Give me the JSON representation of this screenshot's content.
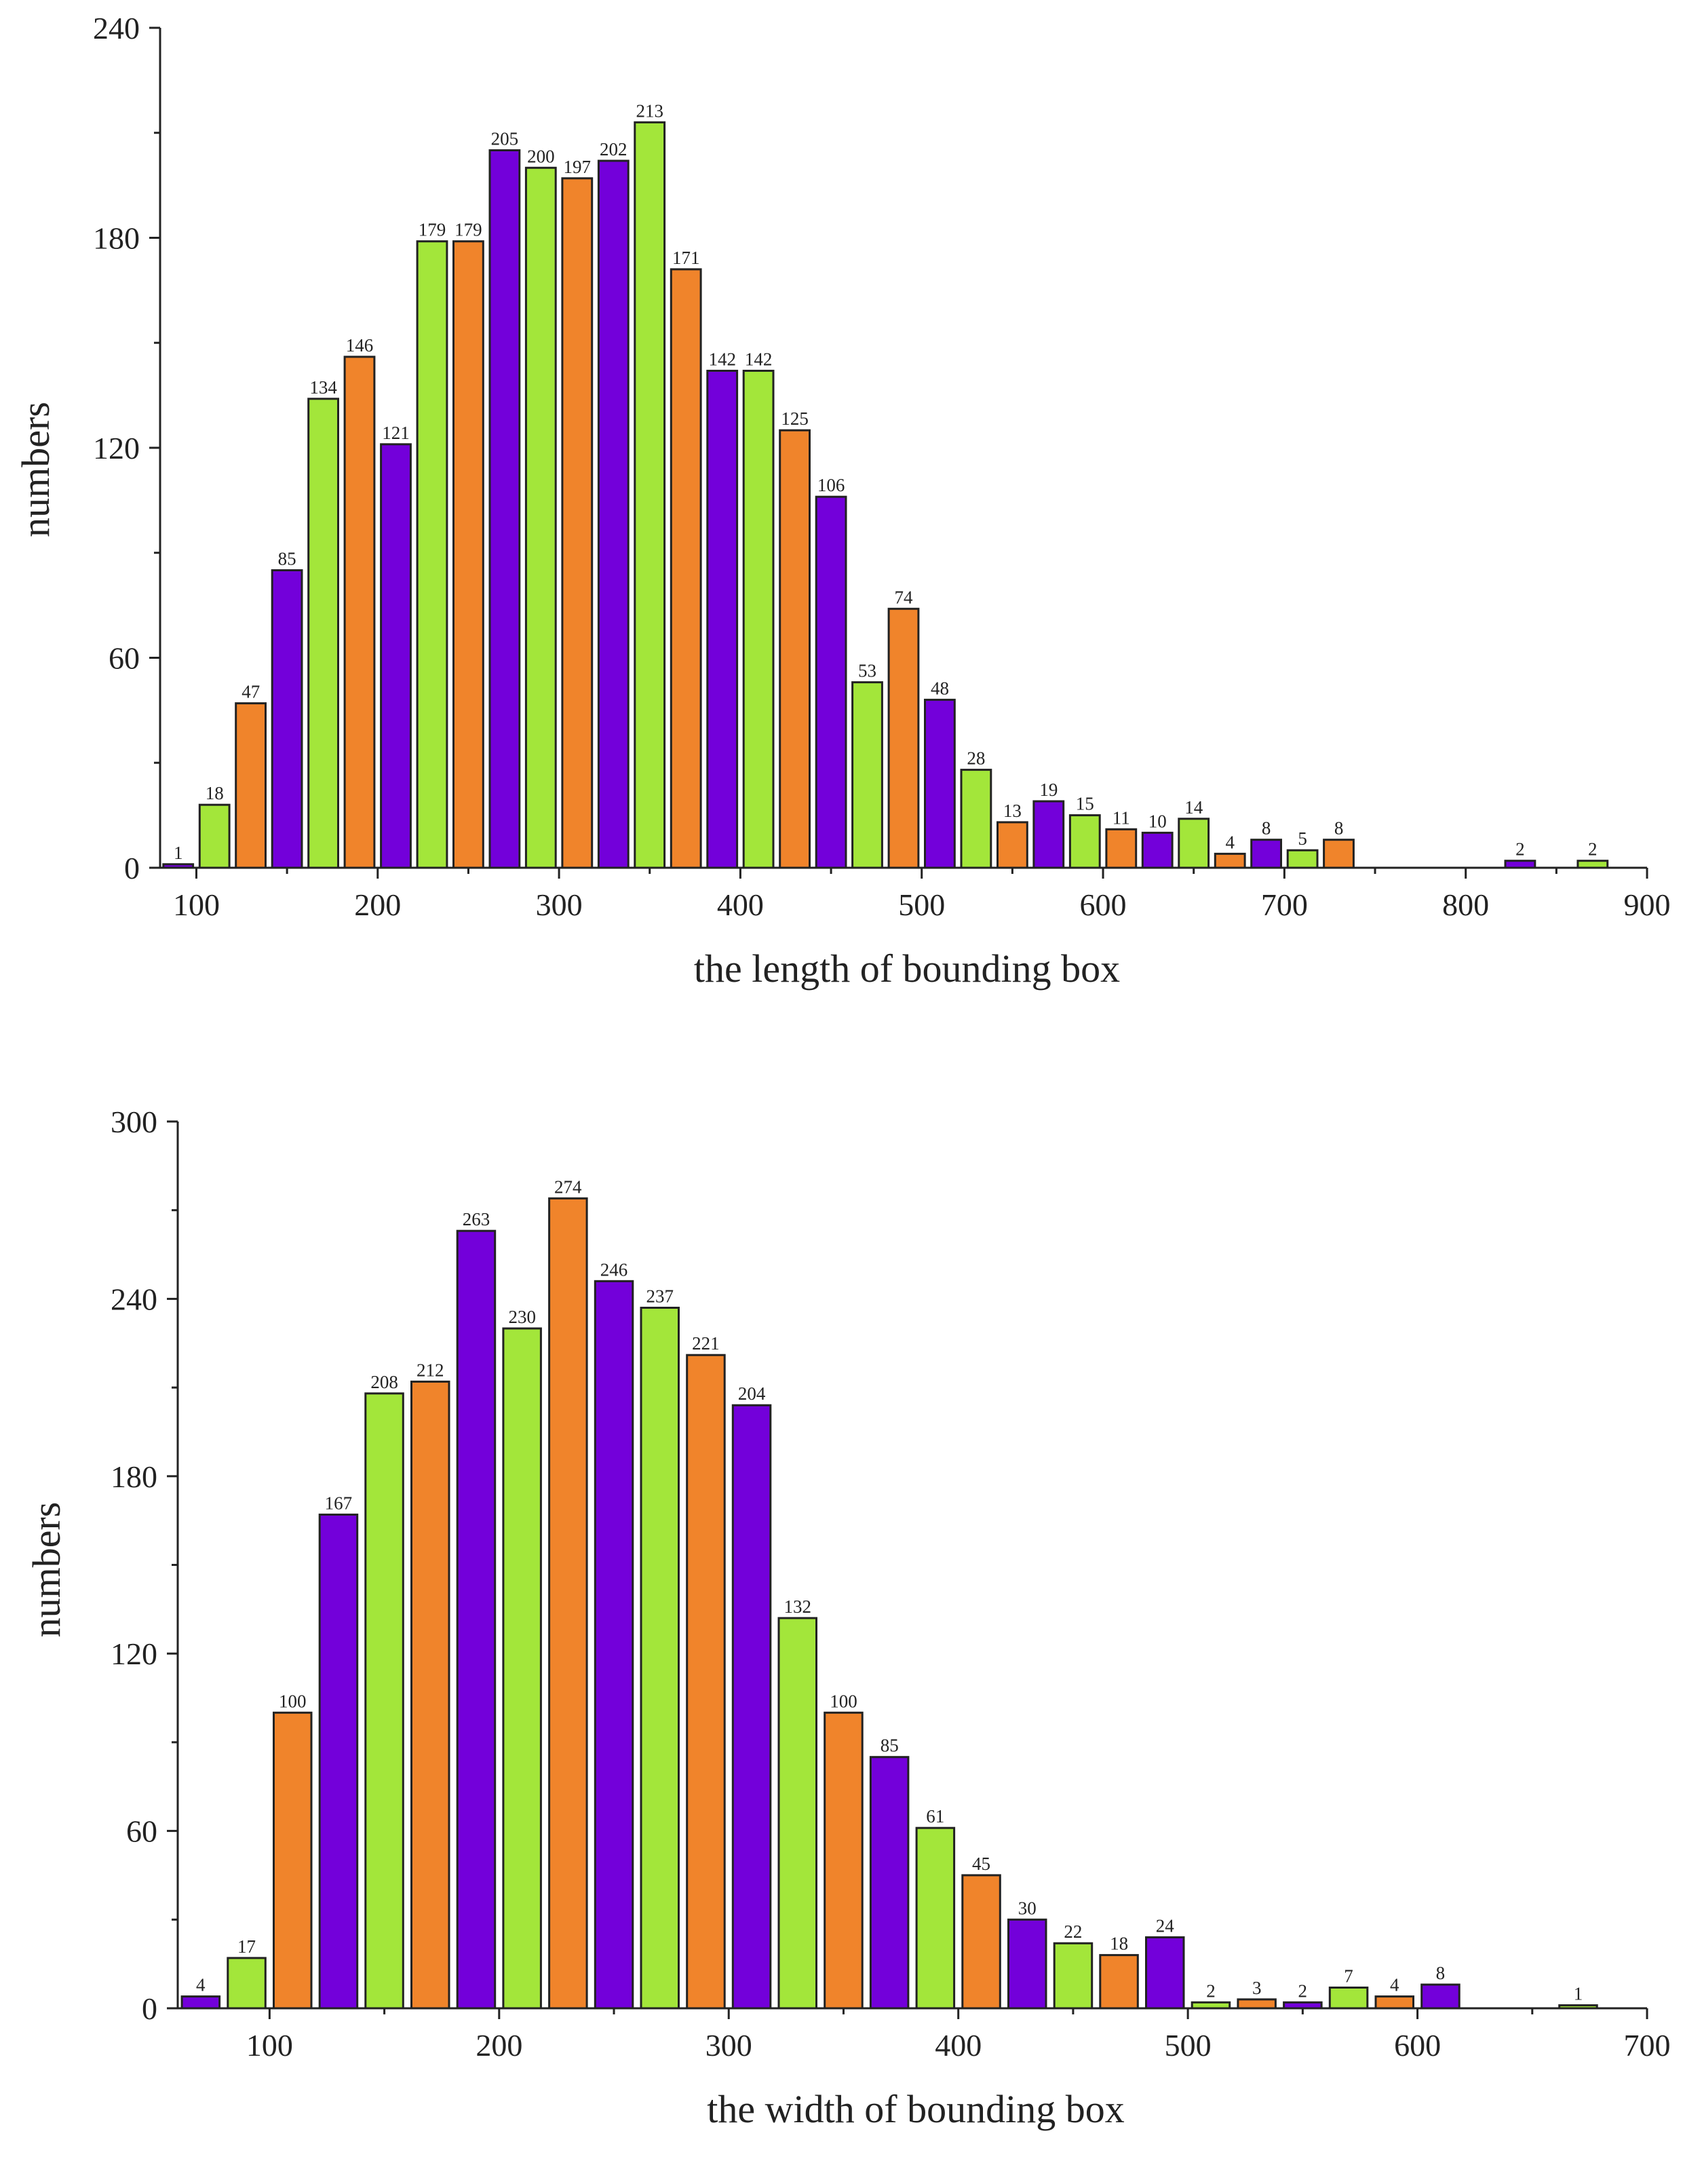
{
  "chart_data": [
    {
      "type": "bar",
      "name": "length-histogram",
      "xlabel": "the length of bounding box",
      "ylabel": "numbers",
      "xlim": [
        80,
        900
      ],
      "ylim": [
        0,
        240
      ],
      "xticks": [
        100,
        200,
        300,
        400,
        500,
        600,
        700,
        800,
        900
      ],
      "yticks": [
        0,
        60,
        120,
        180,
        240
      ],
      "bin_width": 20,
      "bars": [
        {
          "x": 90,
          "value": 1,
          "color": "purple"
        },
        {
          "x": 110,
          "value": 18,
          "color": "green"
        },
        {
          "x": 130,
          "value": 47,
          "color": "orange"
        },
        {
          "x": 150,
          "value": 85,
          "color": "purple"
        },
        {
          "x": 170,
          "value": 134,
          "color": "green"
        },
        {
          "x": 190,
          "value": 146,
          "color": "orange"
        },
        {
          "x": 210,
          "value": 121,
          "color": "purple"
        },
        {
          "x": 230,
          "value": 179,
          "color": "green"
        },
        {
          "x": 250,
          "value": 179,
          "color": "orange"
        },
        {
          "x": 270,
          "value": 205,
          "color": "purple"
        },
        {
          "x": 290,
          "value": 200,
          "color": "green"
        },
        {
          "x": 310,
          "value": 197,
          "color": "orange"
        },
        {
          "x": 330,
          "value": 202,
          "color": "purple"
        },
        {
          "x": 350,
          "value": 213,
          "color": "green"
        },
        {
          "x": 370,
          "value": 171,
          "color": "orange"
        },
        {
          "x": 390,
          "value": 142,
          "color": "purple"
        },
        {
          "x": 410,
          "value": 142,
          "color": "green"
        },
        {
          "x": 430,
          "value": 125,
          "color": "orange"
        },
        {
          "x": 450,
          "value": 106,
          "color": "purple"
        },
        {
          "x": 470,
          "value": 53,
          "color": "green"
        },
        {
          "x": 490,
          "value": 74,
          "color": "orange"
        },
        {
          "x": 510,
          "value": 48,
          "color": "purple"
        },
        {
          "x": 530,
          "value": 28,
          "color": "green"
        },
        {
          "x": 550,
          "value": 13,
          "color": "orange"
        },
        {
          "x": 570,
          "value": 19,
          "color": "purple"
        },
        {
          "x": 590,
          "value": 15,
          "color": "green"
        },
        {
          "x": 610,
          "value": 11,
          "color": "orange"
        },
        {
          "x": 630,
          "value": 10,
          "color": "purple"
        },
        {
          "x": 650,
          "value": 14,
          "color": "green"
        },
        {
          "x": 670,
          "value": 4,
          "color": "orange"
        },
        {
          "x": 690,
          "value": 8,
          "color": "purple"
        },
        {
          "x": 710,
          "value": 5,
          "color": "green"
        },
        {
          "x": 730,
          "value": 8,
          "color": "orange"
        },
        {
          "x": 830,
          "value": 2,
          "color": "purple"
        },
        {
          "x": 870,
          "value": 2,
          "color": "green"
        }
      ]
    },
    {
      "type": "bar",
      "name": "width-histogram",
      "xlabel": "the width of bounding box",
      "ylabel": "numbers",
      "xlim": [
        60,
        700
      ],
      "ylim": [
        0,
        300
      ],
      "xticks": [
        100,
        200,
        300,
        400,
        500,
        600,
        700
      ],
      "yticks": [
        0,
        60,
        120,
        180,
        240,
        300
      ],
      "bin_width": 20,
      "bars": [
        {
          "x": 70,
          "value": 4,
          "color": "purple"
        },
        {
          "x": 90,
          "value": 17,
          "color": "green"
        },
        {
          "x": 110,
          "value": 100,
          "color": "orange"
        },
        {
          "x": 130,
          "value": 167,
          "color": "purple"
        },
        {
          "x": 150,
          "value": 208,
          "color": "green"
        },
        {
          "x": 170,
          "value": 212,
          "color": "orange"
        },
        {
          "x": 190,
          "value": 263,
          "color": "purple"
        },
        {
          "x": 210,
          "value": 230,
          "color": "green"
        },
        {
          "x": 230,
          "value": 274,
          "color": "orange"
        },
        {
          "x": 250,
          "value": 246,
          "color": "purple"
        },
        {
          "x": 270,
          "value": 237,
          "color": "green"
        },
        {
          "x": 290,
          "value": 221,
          "color": "orange"
        },
        {
          "x": 310,
          "value": 204,
          "color": "purple"
        },
        {
          "x": 330,
          "value": 132,
          "color": "green"
        },
        {
          "x": 350,
          "value": 100,
          "color": "orange"
        },
        {
          "x": 370,
          "value": 85,
          "color": "purple"
        },
        {
          "x": 390,
          "value": 61,
          "color": "green"
        },
        {
          "x": 410,
          "value": 45,
          "color": "orange"
        },
        {
          "x": 430,
          "value": 30,
          "color": "purple"
        },
        {
          "x": 450,
          "value": 22,
          "color": "green"
        },
        {
          "x": 470,
          "value": 18,
          "color": "orange"
        },
        {
          "x": 490,
          "value": 24,
          "color": "purple"
        },
        {
          "x": 510,
          "value": 2,
          "color": "green"
        },
        {
          "x": 530,
          "value": 3,
          "color": "orange"
        },
        {
          "x": 550,
          "value": 2,
          "color": "purple"
        },
        {
          "x": 570,
          "value": 7,
          "color": "green"
        },
        {
          "x": 590,
          "value": 4,
          "color": "orange"
        },
        {
          "x": 610,
          "value": 8,
          "color": "purple"
        },
        {
          "x": 670,
          "value": 1,
          "color": "green"
        }
      ]
    }
  ],
  "palette": {
    "purple": "#7300DA",
    "green": "#A3E63A",
    "orange": "#F0842B",
    "edge": "#222222"
  }
}
